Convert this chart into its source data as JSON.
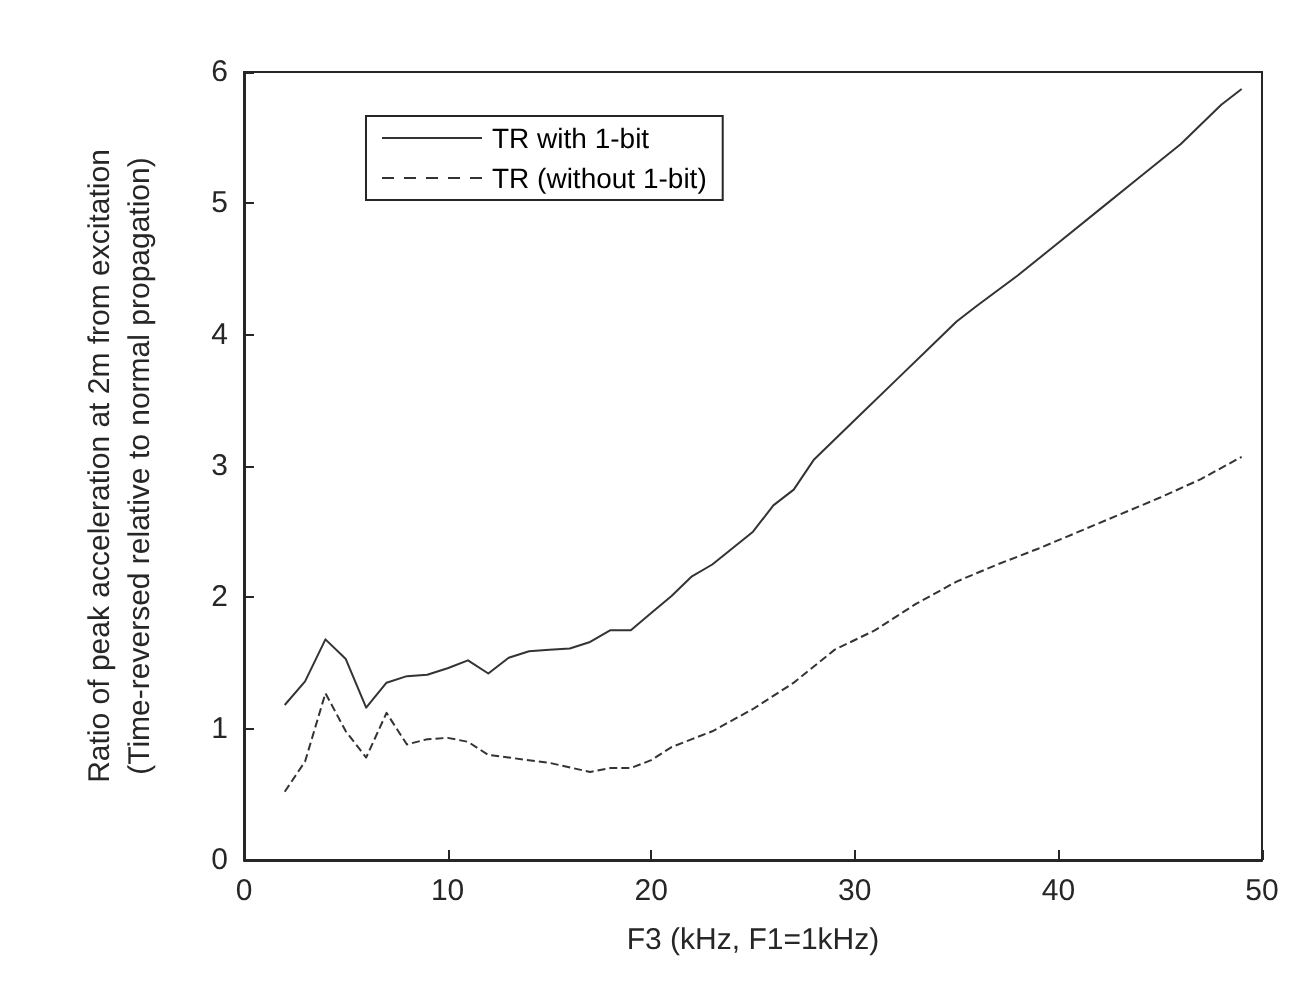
{
  "chart_data": {
    "type": "line",
    "xlabel": "F3 (kHz, F1=1kHz)",
    "ylabel": "Ratio of peak acceleration at 2m from excitation\n(Time-reversed relative to normal propagation)",
    "xlim": [
      0,
      50
    ],
    "xticks": [
      0,
      10,
      20,
      30,
      40,
      50
    ],
    "ylim": [
      0,
      6
    ],
    "yticks": [
      0,
      1,
      2,
      3,
      4,
      5,
      6
    ],
    "grid": false,
    "legend": "top left",
    "marker": "none",
    "series": [
      {
        "name": "TR with 1-bit",
        "color": "#333333",
        "line_style": "solid",
        "x": [
          2,
          3,
          4,
          5,
          6,
          7,
          8,
          9,
          10,
          11,
          12,
          13,
          14,
          15,
          16,
          17,
          18,
          19,
          20,
          21,
          22,
          23,
          25,
          26,
          27,
          28,
          29,
          30,
          32,
          34,
          35,
          36,
          38,
          40,
          42,
          44,
          46,
          48,
          49
        ],
        "values": [
          1.18,
          1.36,
          1.68,
          1.53,
          1.16,
          1.35,
          1.4,
          1.41,
          1.46,
          1.52,
          1.42,
          1.54,
          1.59,
          1.6,
          1.61,
          1.66,
          1.75,
          1.75,
          1.88,
          2.01,
          2.16,
          2.25,
          2.5,
          2.7,
          2.82,
          3.05,
          3.2,
          3.35,
          3.65,
          3.95,
          4.1,
          4.22,
          4.45,
          4.7,
          4.95,
          5.2,
          5.45,
          5.75,
          5.87
        ]
      },
      {
        "name": "TR (without 1-bit)",
        "color": "#333333",
        "line_style": "dashed",
        "x": [
          2,
          3,
          4,
          5,
          6,
          7,
          8,
          9,
          10,
          11,
          12,
          13,
          15,
          17,
          18,
          19,
          20,
          21,
          22,
          23,
          25,
          27,
          29,
          31,
          33,
          35,
          37,
          39,
          41,
          43,
          45,
          47,
          49
        ],
        "values": [
          0.52,
          0.75,
          1.27,
          0.98,
          0.78,
          1.12,
          0.88,
          0.92,
          0.93,
          0.9,
          0.8,
          0.78,
          0.74,
          0.67,
          0.7,
          0.7,
          0.76,
          0.86,
          0.92,
          0.98,
          1.15,
          1.35,
          1.6,
          1.75,
          1.95,
          2.12,
          2.25,
          2.37,
          2.5,
          2.63,
          2.76,
          2.9,
          3.07
        ]
      }
    ]
  }
}
